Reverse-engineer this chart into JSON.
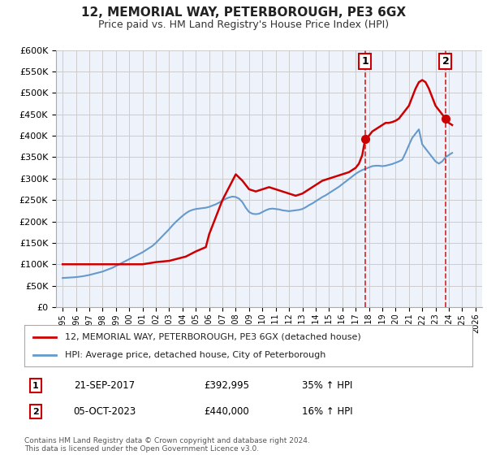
{
  "title": "12, MEMORIAL WAY, PETERBOROUGH, PE3 6GX",
  "subtitle": "Price paid vs. HM Land Registry's House Price Index (HPI)",
  "ylabel_ticks": [
    "£0",
    "£50K",
    "£100K",
    "£150K",
    "£200K",
    "£250K",
    "£300K",
    "£350K",
    "£400K",
    "£450K",
    "£500K",
    "£550K",
    "£600K"
  ],
  "ytick_values": [
    0,
    50000,
    100000,
    150000,
    200000,
    250000,
    300000,
    350000,
    400000,
    450000,
    500000,
    550000,
    600000
  ],
  "ylim": [
    0,
    600000
  ],
  "xlim_start": 1994.5,
  "xlim_end": 2026.5,
  "xticks": [
    1995,
    1996,
    1997,
    1998,
    1999,
    2000,
    2001,
    2002,
    2003,
    2004,
    2005,
    2006,
    2007,
    2008,
    2009,
    2010,
    2011,
    2012,
    2013,
    2014,
    2015,
    2016,
    2017,
    2018,
    2019,
    2020,
    2021,
    2022,
    2023,
    2024,
    2025,
    2026
  ],
  "marker1_x": 2017.72,
  "marker1_y": 392995,
  "marker2_x": 2023.75,
  "marker2_y": 440000,
  "vline1_x": 2017.72,
  "vline2_x": 2023.75,
  "legend_line1": "12, MEMORIAL WAY, PETERBOROUGH, PE3 6GX (detached house)",
  "legend_line2": "HPI: Average price, detached house, City of Peterborough",
  "annotation1_box": "1",
  "annotation1_date": "21-SEP-2017",
  "annotation1_price": "£392,995",
  "annotation1_hpi": "35% ↑ HPI",
  "annotation2_box": "2",
  "annotation2_date": "05-OCT-2023",
  "annotation2_price": "£440,000",
  "annotation2_hpi": "16% ↑ HPI",
  "footnote": "Contains HM Land Registry data © Crown copyright and database right 2024.\nThis data is licensed under the Open Government Licence v3.0.",
  "line1_color": "#cc0000",
  "line2_color": "#6699cc",
  "vline_color": "#cc0000",
  "grid_color": "#cccccc",
  "bg_color": "#ffffff",
  "plot_bg_color": "#eef2fb",
  "title_fontsize": 11,
  "subtitle_fontsize": 9,
  "hpi_data_x": [
    1995.0,
    1995.25,
    1995.5,
    1995.75,
    1996.0,
    1996.25,
    1996.5,
    1996.75,
    1997.0,
    1997.25,
    1997.5,
    1997.75,
    1998.0,
    1998.25,
    1998.5,
    1998.75,
    1999.0,
    1999.25,
    1999.5,
    1999.75,
    2000.0,
    2000.25,
    2000.5,
    2000.75,
    2001.0,
    2001.25,
    2001.5,
    2001.75,
    2002.0,
    2002.25,
    2002.5,
    2002.75,
    2003.0,
    2003.25,
    2003.5,
    2003.75,
    2004.0,
    2004.25,
    2004.5,
    2004.75,
    2005.0,
    2005.25,
    2005.5,
    2005.75,
    2006.0,
    2006.25,
    2006.5,
    2006.75,
    2007.0,
    2007.25,
    2007.5,
    2007.75,
    2008.0,
    2008.25,
    2008.5,
    2008.75,
    2009.0,
    2009.25,
    2009.5,
    2009.75,
    2010.0,
    2010.25,
    2010.5,
    2010.75,
    2011.0,
    2011.25,
    2011.5,
    2011.75,
    2012.0,
    2012.25,
    2012.5,
    2012.75,
    2013.0,
    2013.25,
    2013.5,
    2013.75,
    2014.0,
    2014.25,
    2014.5,
    2014.75,
    2015.0,
    2015.25,
    2015.5,
    2015.75,
    2016.0,
    2016.25,
    2016.5,
    2016.75,
    2017.0,
    2017.25,
    2017.5,
    2017.75,
    2018.0,
    2018.25,
    2018.5,
    2018.75,
    2019.0,
    2019.25,
    2019.5,
    2019.75,
    2020.0,
    2020.25,
    2020.5,
    2020.75,
    2021.0,
    2021.25,
    2021.5,
    2021.75,
    2022.0,
    2022.25,
    2022.5,
    2022.75,
    2023.0,
    2023.25,
    2023.5,
    2023.75,
    2024.0,
    2024.25
  ],
  "hpi_data_y": [
    68000,
    68500,
    69000,
    69500,
    70000,
    71000,
    72000,
    73500,
    75000,
    77000,
    79000,
    81000,
    83000,
    86000,
    89000,
    92000,
    96000,
    100000,
    104000,
    108000,
    112000,
    116000,
    120000,
    124000,
    128000,
    133000,
    138000,
    143000,
    150000,
    158000,
    166000,
    174000,
    182000,
    191000,
    199000,
    206000,
    213000,
    219000,
    224000,
    227000,
    229000,
    230000,
    231000,
    232000,
    234000,
    237000,
    240000,
    244000,
    248000,
    253000,
    256000,
    258000,
    257000,
    253000,
    245000,
    232000,
    222000,
    218000,
    217000,
    218000,
    222000,
    226000,
    229000,
    230000,
    229000,
    228000,
    226000,
    225000,
    224000,
    225000,
    226000,
    227000,
    229000,
    233000,
    238000,
    242000,
    247000,
    252000,
    257000,
    261000,
    266000,
    271000,
    276000,
    281000,
    287000,
    293000,
    299000,
    305000,
    311000,
    316000,
    320000,
    323000,
    326000,
    329000,
    330000,
    330000,
    329000,
    330000,
    332000,
    334000,
    337000,
    340000,
    344000,
    360000,
    378000,
    395000,
    405000,
    415000,
    380000,
    370000,
    360000,
    350000,
    340000,
    335000,
    340000,
    350000,
    355000,
    360000
  ],
  "price_data_x": [
    1995.0,
    1995.5,
    1996.0,
    1997.0,
    1998.0,
    1999.0,
    2000.0,
    2001.0,
    2002.0,
    2003.0,
    2003.5,
    2004.25,
    2005.0,
    2005.75,
    2006.0,
    2006.5,
    2007.0,
    2007.5,
    2008.0,
    2008.5,
    2009.0,
    2009.5,
    2010.0,
    2010.5,
    2011.0,
    2011.5,
    2012.0,
    2012.5,
    2013.0,
    2013.5,
    2014.0,
    2014.5,
    2015.0,
    2015.5,
    2016.0,
    2016.5,
    2017.0,
    2017.25,
    2017.5,
    2017.72,
    2018.0,
    2018.25,
    2018.5,
    2018.75,
    2019.0,
    2019.25,
    2019.5,
    2019.75,
    2020.0,
    2020.25,
    2020.5,
    2020.75,
    2021.0,
    2021.25,
    2021.5,
    2021.75,
    2022.0,
    2022.25,
    2022.5,
    2022.75,
    2023.0,
    2023.25,
    2023.5,
    2023.75,
    2024.0,
    2024.25
  ],
  "price_data_y": [
    100000,
    100000,
    100000,
    100000,
    100000,
    100000,
    100000,
    100000,
    105000,
    108000,
    112000,
    118000,
    130000,
    140000,
    170000,
    210000,
    250000,
    280000,
    310000,
    295000,
    275000,
    270000,
    275000,
    280000,
    275000,
    270000,
    265000,
    260000,
    265000,
    275000,
    285000,
    295000,
    300000,
    305000,
    310000,
    315000,
    325000,
    335000,
    355000,
    392995,
    400000,
    410000,
    415000,
    420000,
    425000,
    430000,
    430000,
    432000,
    435000,
    440000,
    450000,
    460000,
    470000,
    490000,
    510000,
    525000,
    530000,
    525000,
    510000,
    490000,
    470000,
    460000,
    450000,
    440000,
    430000,
    425000
  ]
}
